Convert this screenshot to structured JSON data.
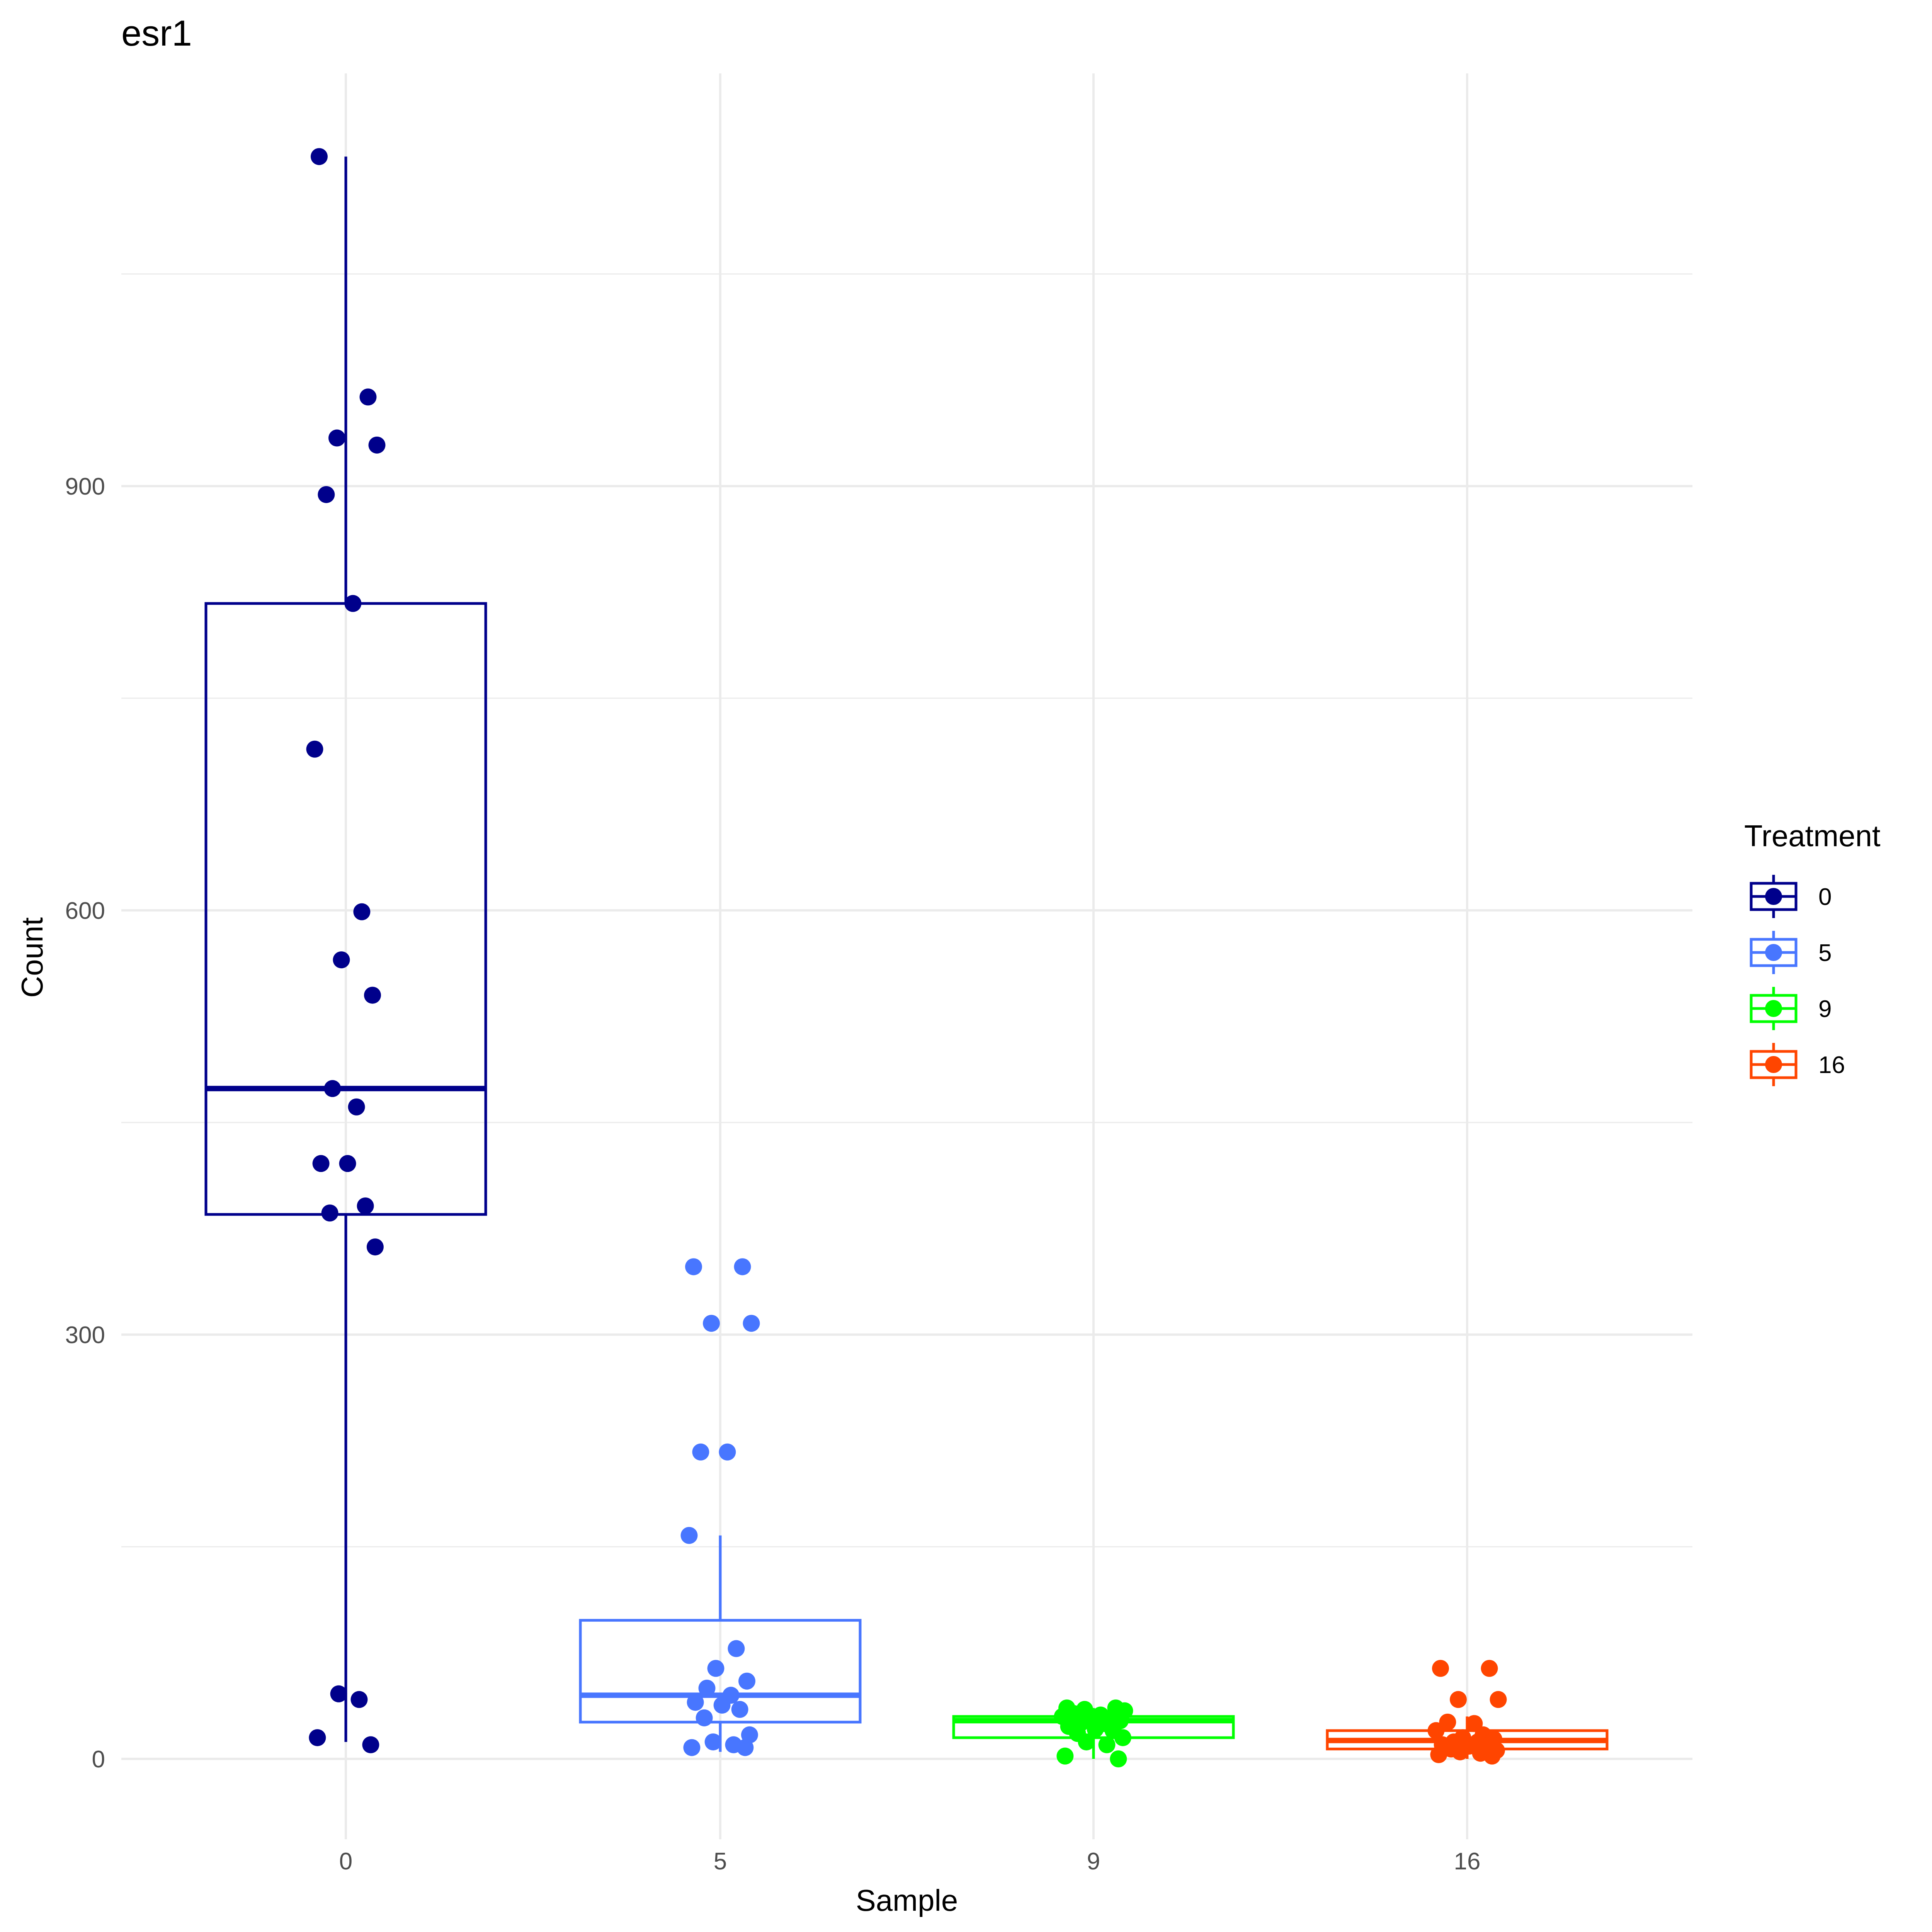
{
  "chart_data": {
    "type": "boxplot",
    "title": "esr1",
    "xlabel": "Sample",
    "ylabel": "Count",
    "categories": [
      "0",
      "5",
      "9",
      "16"
    ],
    "y_ticks": [
      0,
      300,
      600,
      900
    ],
    "ylim": [
      -70,
      1190
    ],
    "grid": true,
    "legend": {
      "title": "Treatment",
      "position": "right",
      "entries": [
        "0",
        "5",
        "9",
        "16"
      ]
    },
    "series": [
      {
        "name": "0",
        "color": "#00008B",
        "box": {
          "min": 12,
          "q1": 385,
          "median": 474,
          "q3": 817,
          "max": 1133
        },
        "points": [
          1133,
          963,
          934,
          929,
          894,
          817,
          714,
          599,
          565,
          540,
          474,
          461,
          421,
          421,
          391,
          386,
          362,
          46,
          42,
          15,
          10
        ]
      },
      {
        "name": "5",
        "color": "#4876FF",
        "box": {
          "min": 5,
          "q1": 26,
          "median": 45,
          "q3": 98,
          "max": 158
        },
        "points": [
          348,
          348,
          308,
          308,
          217,
          217,
          158,
          78,
          64,
          55,
          50,
          45,
          40,
          38,
          35,
          29,
          17,
          12,
          10,
          8,
          8
        ]
      },
      {
        "name": "9",
        "color": "#00FF00",
        "box": {
          "min": 0,
          "q1": 15,
          "median": 27,
          "q3": 30,
          "max": 36
        },
        "points": [
          36,
          36,
          35,
          34,
          32,
          31,
          30,
          28,
          27,
          27,
          25,
          25,
          23,
          21,
          20,
          18,
          15,
          12,
          10,
          2,
          0
        ]
      },
      {
        "name": "16",
        "color": "#FF4500",
        "box": {
          "min": 0,
          "q1": 7,
          "median": 13,
          "q3": 20,
          "max": 30
        },
        "points": [
          64,
          64,
          42,
          42,
          26,
          25,
          20,
          17,
          15,
          14,
          12,
          12,
          10,
          9,
          8,
          7,
          6,
          5,
          4,
          3,
          2
        ]
      }
    ]
  }
}
